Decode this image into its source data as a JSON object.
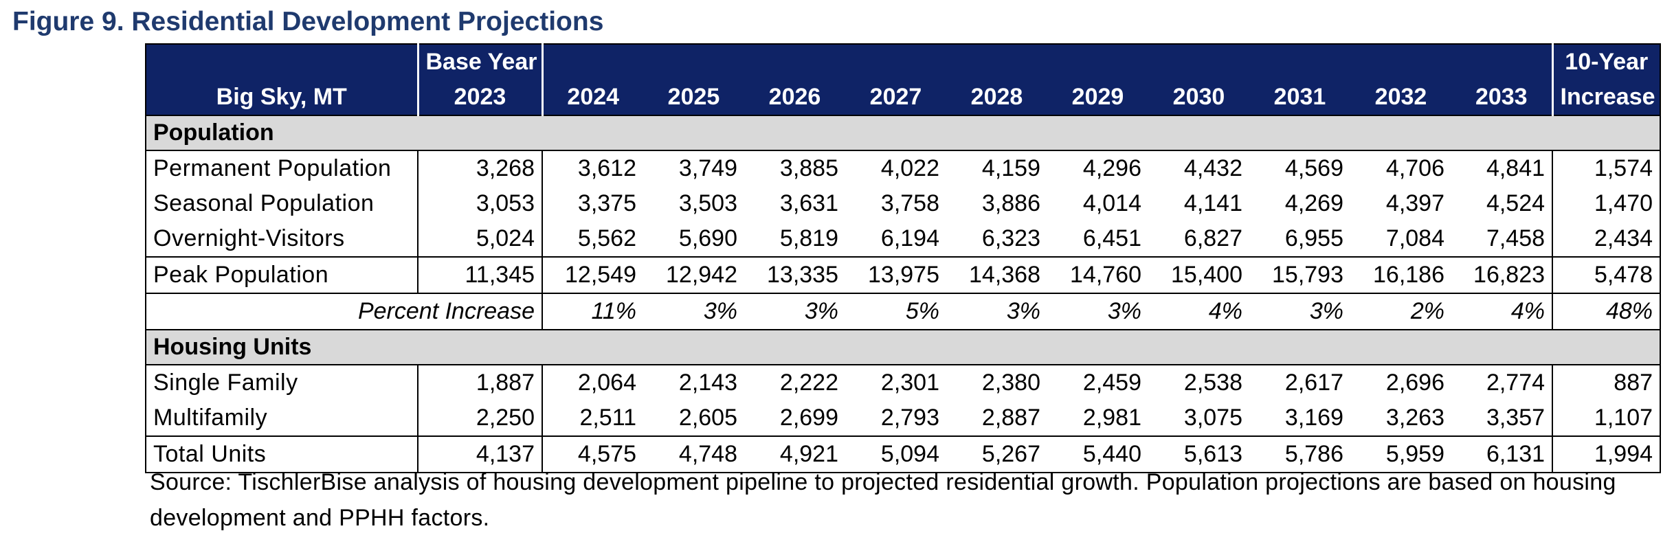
{
  "title": "Figure 9. Residential Development Projections",
  "header": {
    "location": "Big Sky, MT",
    "base_year_top": "Base Year",
    "base_year": "2023",
    "years": [
      "2024",
      "2025",
      "2026",
      "2027",
      "2028",
      "2029",
      "2030",
      "2031",
      "2032",
      "2033"
    ],
    "increase_top": "10-Year",
    "increase_bottom": "Increase"
  },
  "sections": {
    "population": "Population",
    "housing": "Housing Units"
  },
  "rows": {
    "permanent": {
      "label": "Permanent Population",
      "base": "3,268",
      "values": [
        "3,612",
        "3,749",
        "3,885",
        "4,022",
        "4,159",
        "4,296",
        "4,432",
        "4,569",
        "4,706",
        "4,841"
      ],
      "increase": "1,574"
    },
    "seasonal": {
      "label": "Seasonal Population",
      "base": "3,053",
      "values": [
        "3,375",
        "3,503",
        "3,631",
        "3,758",
        "3,886",
        "4,014",
        "4,141",
        "4,269",
        "4,397",
        "4,524"
      ],
      "increase": "1,470"
    },
    "overnight": {
      "label": "Overnight-Visitors",
      "base": "5,024",
      "values": [
        "5,562",
        "5,690",
        "5,819",
        "6,194",
        "6,323",
        "6,451",
        "6,827",
        "6,955",
        "7,084",
        "7,458"
      ],
      "increase": "2,434"
    },
    "peak": {
      "label": "Peak Population",
      "base": "11,345",
      "values": [
        "12,549",
        "12,942",
        "13,335",
        "13,975",
        "14,368",
        "14,760",
        "15,400",
        "15,793",
        "16,186",
        "16,823"
      ],
      "increase": "5,478"
    },
    "percent": {
      "label": "Percent Increase",
      "values": [
        "11%",
        "3%",
        "3%",
        "5%",
        "3%",
        "3%",
        "4%",
        "3%",
        "2%",
        "4%"
      ],
      "increase": "48%"
    },
    "single_family": {
      "label": "Single Family",
      "base": "1,887",
      "values": [
        "2,064",
        "2,143",
        "2,222",
        "2,301",
        "2,380",
        "2,459",
        "2,538",
        "2,617",
        "2,696",
        "2,774"
      ],
      "increase": "887"
    },
    "multifamily": {
      "label": "Multifamily",
      "base": "2,250",
      "values": [
        "2,511",
        "2,605",
        "2,699",
        "2,793",
        "2,887",
        "2,981",
        "3,075",
        "3,169",
        "3,263",
        "3,357"
      ],
      "increase": "1,107"
    },
    "total_units": {
      "label": "Total Units",
      "base": "4,137",
      "values": [
        "4,575",
        "4,748",
        "4,921",
        "5,094",
        "5,267",
        "5,440",
        "5,613",
        "5,786",
        "5,959",
        "6,131"
      ],
      "increase": "1,994"
    }
  },
  "source": "Source: TischlerBise analysis of housing development pipeline to projected residential growth. Population projections are based on housing development and PPHH factors."
}
